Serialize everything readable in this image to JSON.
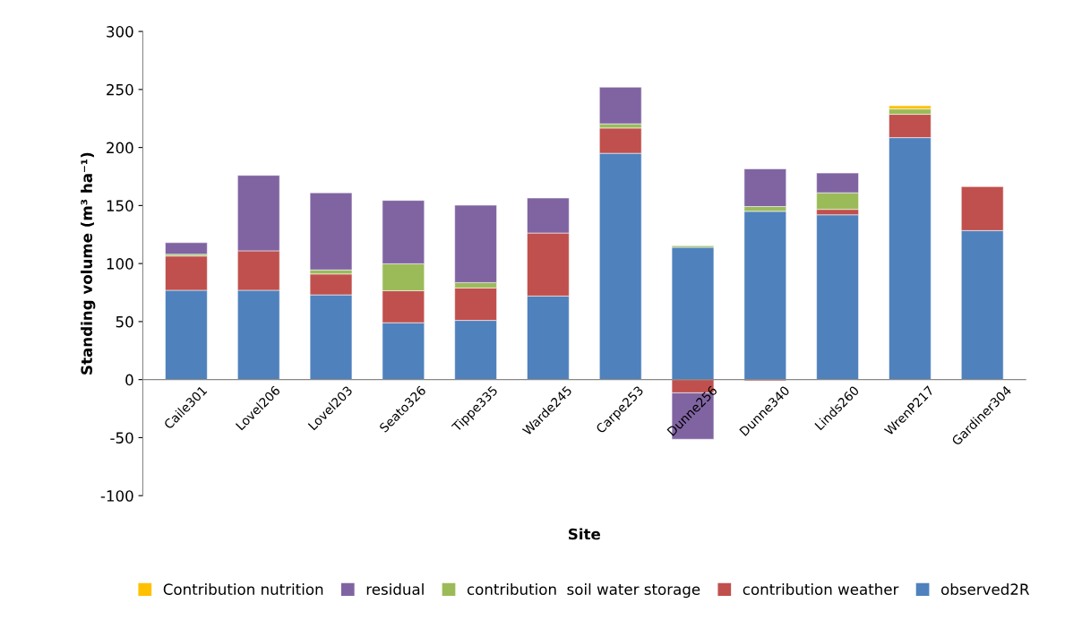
{
  "chart_data": {
    "type": "bar",
    "stacked": true,
    "xlabel": "Site",
    "ylabel": "Standing volume (m³ ha⁻¹)",
    "categories": [
      "Caile301",
      "Lovel206",
      "Lovel203",
      "Seato326",
      "Tippe335",
      "Warde245",
      "Carpe253",
      "Dunne256",
      "Dunne340",
      "Linds260",
      "WrenP217",
      "Gardiner304"
    ],
    "series": [
      {
        "name": "observed2R",
        "color": "#4f81bd",
        "values": [
          77,
          77,
          73,
          49,
          51,
          72,
          195,
          114,
          145,
          142,
          208.5,
          128.4
        ]
      },
      {
        "name": "contribution weather",
        "color": "#c0504d",
        "values": [
          29.5,
          34,
          18,
          27.6,
          28,
          54.3,
          21.8,
          -11.4,
          -1,
          4.7,
          20.1,
          37.9
        ]
      },
      {
        "name": "contribution  soil water storage",
        "color": "#9bbb59",
        "values": [
          1.5,
          null,
          3.5,
          23.2,
          4.6,
          null,
          3.6,
          1.3,
          4.1,
          14.3,
          4.6,
          null
        ]
      },
      {
        "name": "residual",
        "color": "#8064a2",
        "values": [
          10,
          65,
          66.5,
          54.6,
          66.7,
          30.2,
          31.6,
          -40,
          32.5,
          17,
          null,
          null
        ]
      },
      {
        "name": "Contribution nutrition",
        "color": "#ffc000",
        "values": [
          null,
          null,
          null,
          null,
          null,
          null,
          null,
          null,
          null,
          null,
          2.8,
          null
        ]
      }
    ],
    "ylim": [
      -100,
      300
    ],
    "yticks": [
      -100,
      -50,
      0,
      50,
      100,
      150,
      200,
      250,
      300
    ],
    "grid": false,
    "legend": "bottom"
  }
}
